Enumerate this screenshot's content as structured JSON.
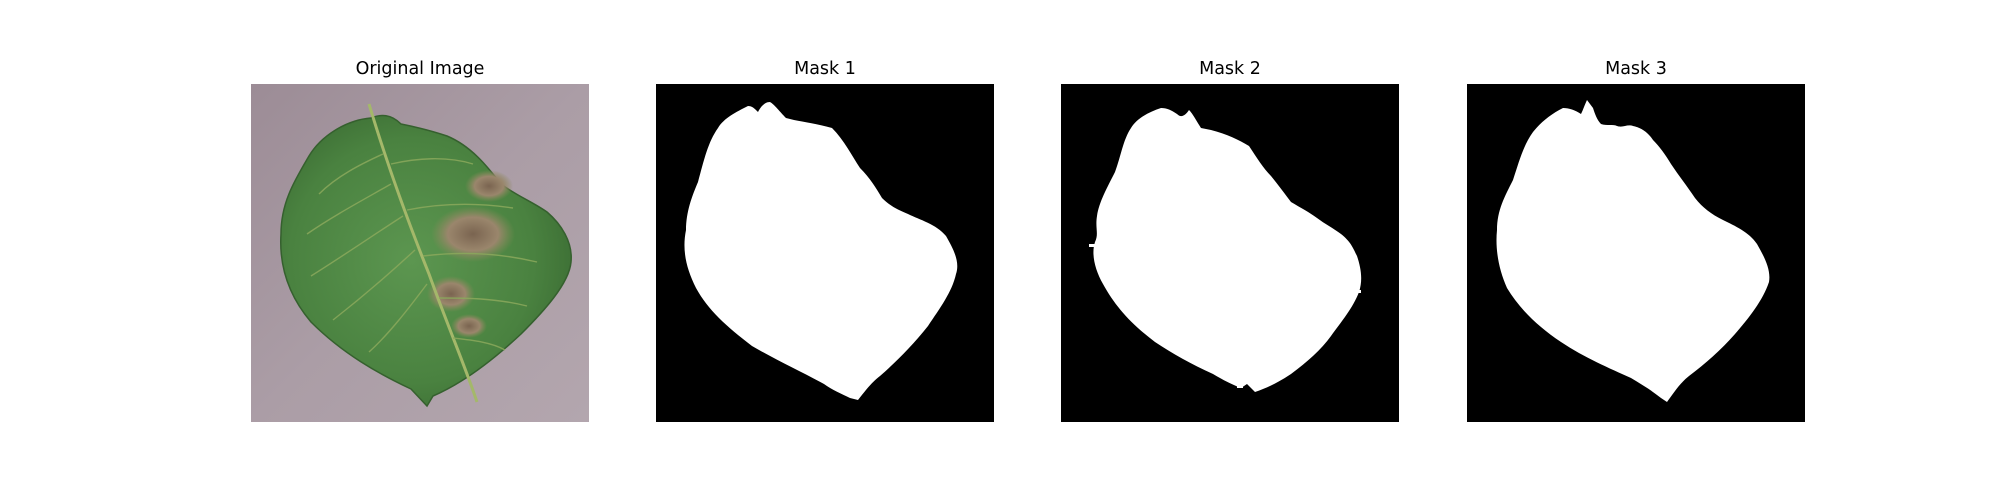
{
  "figure": {
    "panels": [
      {
        "title": "Original Image",
        "kind": "photo",
        "content": "potato-leaf-with-brown-lesions"
      },
      {
        "title": "Mask 1",
        "kind": "mask",
        "colors": {
          "background": "#000000",
          "foreground": "#ffffff"
        }
      },
      {
        "title": "Mask 2",
        "kind": "mask",
        "colors": {
          "background": "#000000",
          "foreground": "#ffffff"
        }
      },
      {
        "title": "Mask 3",
        "kind": "mask",
        "colors": {
          "background": "#000000",
          "foreground": "#ffffff"
        }
      }
    ]
  },
  "colors": {
    "page_background": "#ffffff",
    "photo_background": "#a99ba3",
    "leaf_green": "#4f8a44",
    "leaf_dark": "#3c6e35",
    "leaf_vein": "#a4b86a",
    "lesion_brown": "#8c7660"
  }
}
